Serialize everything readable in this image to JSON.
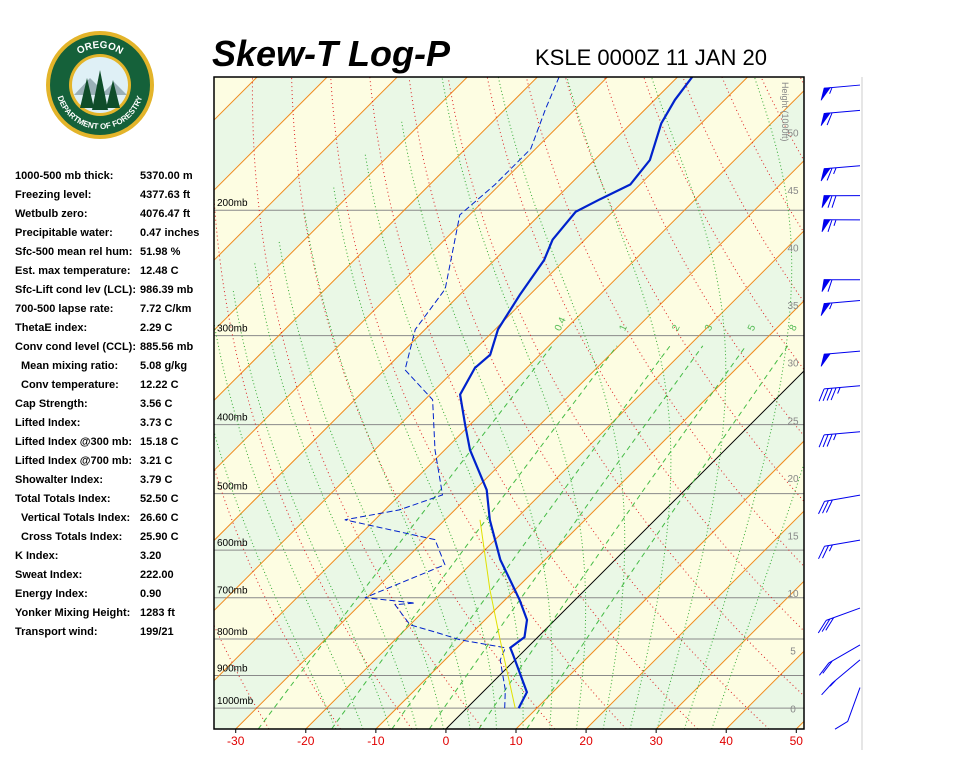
{
  "logo": {
    "top": "OREGON",
    "bottom": "DEPARTMENT OF FORESTRY"
  },
  "stats": [
    [
      "1000-500 mb thick:",
      "5370.00 m"
    ],
    [
      "Freezing level:",
      "4377.63 ft"
    ],
    [
      "Wetbulb zero:",
      "4076.47 ft"
    ],
    [
      "Precipitable water:",
      "0.47 inches"
    ],
    [
      "Sfc-500 mean rel hum:",
      "51.98 %"
    ],
    [
      "Est. max temperature:",
      "12.48 C"
    ],
    [
      "Sfc-Lift cond lev (LCL):",
      "986.39 mb"
    ],
    [
      "700-500 lapse rate:",
      "7.72 C/km"
    ],
    [
      "ThetaE index:",
      "2.29 C"
    ],
    [
      "Conv cond level (CCL):",
      "885.56 mb"
    ],
    [
      "Mean mixing ratio:",
      "5.08 g/kg"
    ],
    [
      "Conv temperature:",
      "12.22 C"
    ],
    [
      "Cap Strength:",
      "3.56 C"
    ],
    [
      "Lifted Index:",
      "3.73 C"
    ],
    [
      "Lifted Index @300 mb:",
      "15.18 C"
    ],
    [
      "Lifted Index @700 mb:",
      "3.21 C"
    ],
    [
      "Showalter Index:",
      "3.79 C"
    ],
    [
      "Total Totals Index:",
      "52.50 C"
    ],
    [
      "Vertical Totals Index:",
      "26.60 C"
    ],
    [
      "Cross Totals Index:",
      "25.90 C"
    ],
    [
      "K Index:",
      "3.20"
    ],
    [
      "Sweat Index:",
      "222.00"
    ],
    [
      "Energy Index:",
      "0.90"
    ],
    [
      "Yonker Mixing Height:",
      "1283 ft"
    ],
    [
      "Transport wind:",
      "199/21"
    ]
  ],
  "chart_data": {
    "type": "skewt",
    "title": "Skew-T Log-P",
    "subtitle": "KSLE 0000Z 11 JAN 20",
    "xlim": [
      -33.1,
      51.1
    ],
    "xticks": [
      -30,
      -20,
      -10,
      0,
      10,
      20,
      30,
      40,
      50
    ],
    "ylim": [
      1070,
      130
    ],
    "log_y": true,
    "skew": 45,
    "yticks": [
      {
        "value": 200,
        "label": "200mb"
      },
      {
        "value": 300,
        "label": "300mb"
      },
      {
        "value": 400,
        "label": "400mb"
      },
      {
        "value": 500,
        "label": "500mb"
      },
      {
        "value": 600,
        "label": "600mb"
      },
      {
        "value": 700,
        "label": "700mb"
      },
      {
        "value": 800,
        "label": "800mb"
      },
      {
        "value": 900,
        "label": "900mb"
      },
      {
        "value": 1000,
        "label": "1000mb"
      }
    ],
    "y2label": "Height (1000ft)",
    "y2lim": [
      -1.8,
      54.8
    ],
    "y2ticks": [
      0,
      5,
      10,
      15,
      20,
      25,
      30,
      35,
      40,
      45,
      50
    ],
    "mixing_ratios": [
      0.4,
      1,
      2,
      3,
      5,
      8
    ],
    "series": [
      {
        "color": "#0022cc",
        "dash": false,
        "x": [
          7.4,
          6.3,
          -1.0,
          -2.4,
          -1.9,
          -4.0,
          -7.9,
          -12.1,
          -16.4,
          -23.6,
          -28.3,
          -36.4,
          -40.7,
          -45.7,
          -47.4,
          -47.1,
          -49.6,
          -51.4,
          -52.9,
          -54.6,
          -55.3,
          -53.6,
          -51.4,
          -52.1,
          -55.7,
          -57.1,
          -57.9
        ],
        "values": [
          1000,
          950,
          842,
          823,
          795,
          752,
          705,
          661,
          619,
          544,
          494,
          434,
          400,
          363,
          333,
          319,
          294,
          263,
          235,
          220,
          201,
          193,
          184,
          170,
          151,
          140,
          130
        ]
      },
      {
        "color": "#0022cc",
        "dash": true,
        "x": [
          5.4,
          2.9,
          -2.1,
          -3.1,
          -10.7,
          -15.4,
          -20.0,
          -25.0,
          -22.4,
          -30.3,
          -23.6,
          -28.6,
          -44.3,
          -37.9,
          -33.9,
          -41.4,
          -48.9,
          -57.1,
          -61.4,
          -62.9,
          -71.4,
          -70.7,
          -70.7,
          -74.3,
          -76.9
        ],
        "values": [
          1000,
          943,
          856,
          823,
          802,
          782,
          764,
          716,
          712,
          700,
          629,
          580,
          544,
          527,
          502,
          434,
          369,
          335,
          294,
          258,
          203,
          184,
          164,
          144,
          130
        ]
      },
      {
        "color": "#e0e000",
        "dash": false,
        "x": [
          6.9,
          -5.0,
          -13.6,
          -25.0
        ],
        "values": [
          1000,
          802,
          682,
          544
        ]
      }
    ],
    "winds": {
      "heights": [
        1.8,
        4.2,
        5.5,
        8.7,
        14.6,
        18.5,
        24,
        28,
        31,
        35.4,
        37.2,
        42.4,
        44.5,
        47.1,
        51.9,
        54.1
      ],
      "speeds": [
        10,
        15,
        20,
        30,
        25,
        30,
        35,
        45,
        50,
        55,
        60,
        65,
        70,
        65,
        60,
        55
      ],
      "directions": [
        200,
        230,
        240,
        250,
        260,
        260,
        265,
        265,
        265,
        265,
        270,
        270,
        270,
        265,
        265,
        265
      ],
      "color": "#0000ee"
    }
  }
}
